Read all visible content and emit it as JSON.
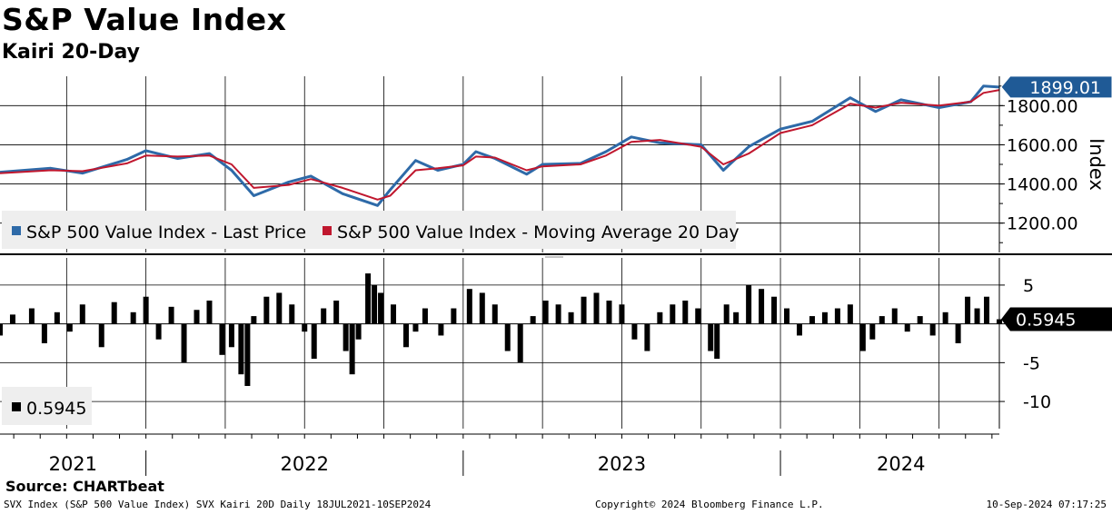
{
  "header": {
    "title": "S&P Value Index",
    "subtitle": "Kairi 20-Day"
  },
  "source": "Source: CHARTbeat",
  "footer": {
    "left": "SVX Index (S&P 500 Value Index) SVX Kairi 20D  Daily 18JUL2021-10SEP2024",
    "center": "Copyright© 2024 Bloomberg Finance L.P.",
    "right": "10-Sep-2024 07:17:25"
  },
  "colors": {
    "price": "#2e6aa8",
    "ma": "#c0172e",
    "kairi": "#000000"
  },
  "chart_data": [
    {
      "type": "line",
      "title": "S&P Value Index",
      "ylabel": "Index",
      "ylim": [
        1050,
        1950
      ],
      "yticks": [
        1200,
        1400,
        1600,
        1800
      ],
      "ytick_labels": [
        "1200.00",
        "1400.00",
        "1600.00",
        "1800.00"
      ],
      "last_value_label": "1899.01",
      "legend": [
        "S&P 500 Value Index - Last Price",
        "S&P 500 Value Index - Moving Average 20 Day"
      ],
      "x_start": 2021.54,
      "x_end": 2024.69,
      "series": [
        {
          "name": "S&P 500 Value Index - Last Price",
          "x": [
            2021.54,
            2021.7,
            2021.8,
            2021.94,
            2022.0,
            2022.1,
            2022.2,
            2022.27,
            2022.34,
            2022.45,
            2022.52,
            2022.62,
            2022.73,
            2022.77,
            2022.85,
            2022.92,
            2023.0,
            2023.04,
            2023.1,
            2023.2,
            2023.25,
            2023.37,
            2023.45,
            2023.53,
            2023.62,
            2023.75,
            2023.82,
            2023.9,
            2024.0,
            2024.1,
            2024.22,
            2024.3,
            2024.38,
            2024.5,
            2024.6,
            2024.64,
            2024.69
          ],
          "y": [
            1460,
            1480,
            1455,
            1525,
            1570,
            1530,
            1555,
            1470,
            1340,
            1410,
            1440,
            1350,
            1290,
            1370,
            1520,
            1470,
            1500,
            1565,
            1530,
            1450,
            1500,
            1505,
            1565,
            1640,
            1610,
            1600,
            1470,
            1590,
            1680,
            1720,
            1840,
            1770,
            1830,
            1790,
            1820,
            1900,
            1895
          ]
        },
        {
          "name": "S&P 500 Value Index - Moving Average 20 Day",
          "x": [
            2021.54,
            2021.7,
            2021.8,
            2021.94,
            2022.0,
            2022.1,
            2022.2,
            2022.27,
            2022.34,
            2022.45,
            2022.52,
            2022.62,
            2022.73,
            2022.77,
            2022.85,
            2022.92,
            2023.0,
            2023.04,
            2023.1,
            2023.2,
            2023.25,
            2023.37,
            2023.45,
            2023.53,
            2023.62,
            2023.75,
            2023.82,
            2023.9,
            2024.0,
            2024.1,
            2024.22,
            2024.3,
            2024.38,
            2024.5,
            2024.6,
            2024.64,
            2024.69
          ],
          "y": [
            1455,
            1470,
            1465,
            1505,
            1545,
            1540,
            1545,
            1500,
            1380,
            1395,
            1425,
            1380,
            1320,
            1340,
            1470,
            1480,
            1495,
            1540,
            1535,
            1470,
            1490,
            1500,
            1545,
            1615,
            1625,
            1590,
            1500,
            1555,
            1660,
            1700,
            1810,
            1790,
            1815,
            1800,
            1820,
            1865,
            1880
          ]
        }
      ]
    },
    {
      "type": "bar",
      "title": "Kairi 20-Day",
      "ylim": [
        -13.5,
        8.5
      ],
      "yticks": [
        5,
        0,
        -5,
        -10
      ],
      "ytick_labels": [
        "5",
        "",
        "-5",
        "-10"
      ],
      "last_value_label": "0.5945",
      "legend": [
        "0.5945"
      ],
      "x": [
        2021.54,
        2021.58,
        2021.64,
        2021.68,
        2021.72,
        2021.76,
        2021.8,
        2021.86,
        2021.9,
        2021.96,
        2022.0,
        2022.04,
        2022.08,
        2022.12,
        2022.16,
        2022.2,
        2022.24,
        2022.27,
        2022.3,
        2022.32,
        2022.34,
        2022.38,
        2022.42,
        2022.46,
        2022.5,
        2022.53,
        2022.56,
        2022.6,
        2022.63,
        2022.65,
        2022.67,
        2022.7,
        2022.72,
        2022.74,
        2022.78,
        2022.82,
        2022.85,
        2022.88,
        2022.93,
        2022.97,
        2023.02,
        2023.06,
        2023.1,
        2023.14,
        2023.18,
        2023.22,
        2023.26,
        2023.3,
        2023.34,
        2023.38,
        2023.42,
        2023.46,
        2023.5,
        2023.54,
        2023.58,
        2023.62,
        2023.66,
        2023.7,
        2023.74,
        2023.78,
        2023.8,
        2023.83,
        2023.86,
        2023.9,
        2023.94,
        2023.98,
        2024.02,
        2024.06,
        2024.1,
        2024.14,
        2024.18,
        2024.22,
        2024.26,
        2024.29,
        2024.32,
        2024.36,
        2024.4,
        2024.44,
        2024.48,
        2024.52,
        2024.56,
        2024.59,
        2024.62,
        2024.65,
        2024.69
      ],
      "values": [
        -1.5,
        1.2,
        2.0,
        -2.5,
        1.5,
        -1.0,
        2.5,
        -3.0,
        2.8,
        1.5,
        3.5,
        -2.0,
        2.2,
        -5.0,
        1.8,
        3.0,
        -4.0,
        -3.0,
        -6.5,
        -8.0,
        1.0,
        3.5,
        4.0,
        2.5,
        -1.0,
        -4.5,
        2.0,
        3.0,
        -3.5,
        -6.5,
        -2.0,
        6.5,
        5.0,
        4.0,
        2.5,
        -3.0,
        -1.0,
        2.0,
        -1.5,
        2.0,
        4.5,
        4.0,
        2.5,
        -3.5,
        -5.0,
        1.0,
        3.0,
        2.5,
        1.5,
        3.5,
        4.0,
        3.0,
        2.5,
        -2.0,
        -3.5,
        1.5,
        2.5,
        3.0,
        2.0,
        -3.5,
        -4.5,
        2.5,
        1.5,
        5.0,
        4.5,
        3.5,
        2.0,
        -1.5,
        1.0,
        1.5,
        2.0,
        2.5,
        -3.5,
        -2.0,
        1.0,
        2.0,
        -1.0,
        1.0,
        -1.5,
        1.5,
        -2.5,
        3.5,
        2.0,
        3.5,
        0.5945
      ]
    }
  ],
  "x_axis": {
    "year_labels": [
      {
        "label": "2021",
        "center": 2021.77
      },
      {
        "label": "2022",
        "center": 2022.5
      },
      {
        "label": "2023",
        "center": 2023.5
      },
      {
        "label": "2024",
        "center": 2024.38
      }
    ],
    "year_boundaries": [
      2022.0,
      2023.0,
      2024.0
    ]
  }
}
